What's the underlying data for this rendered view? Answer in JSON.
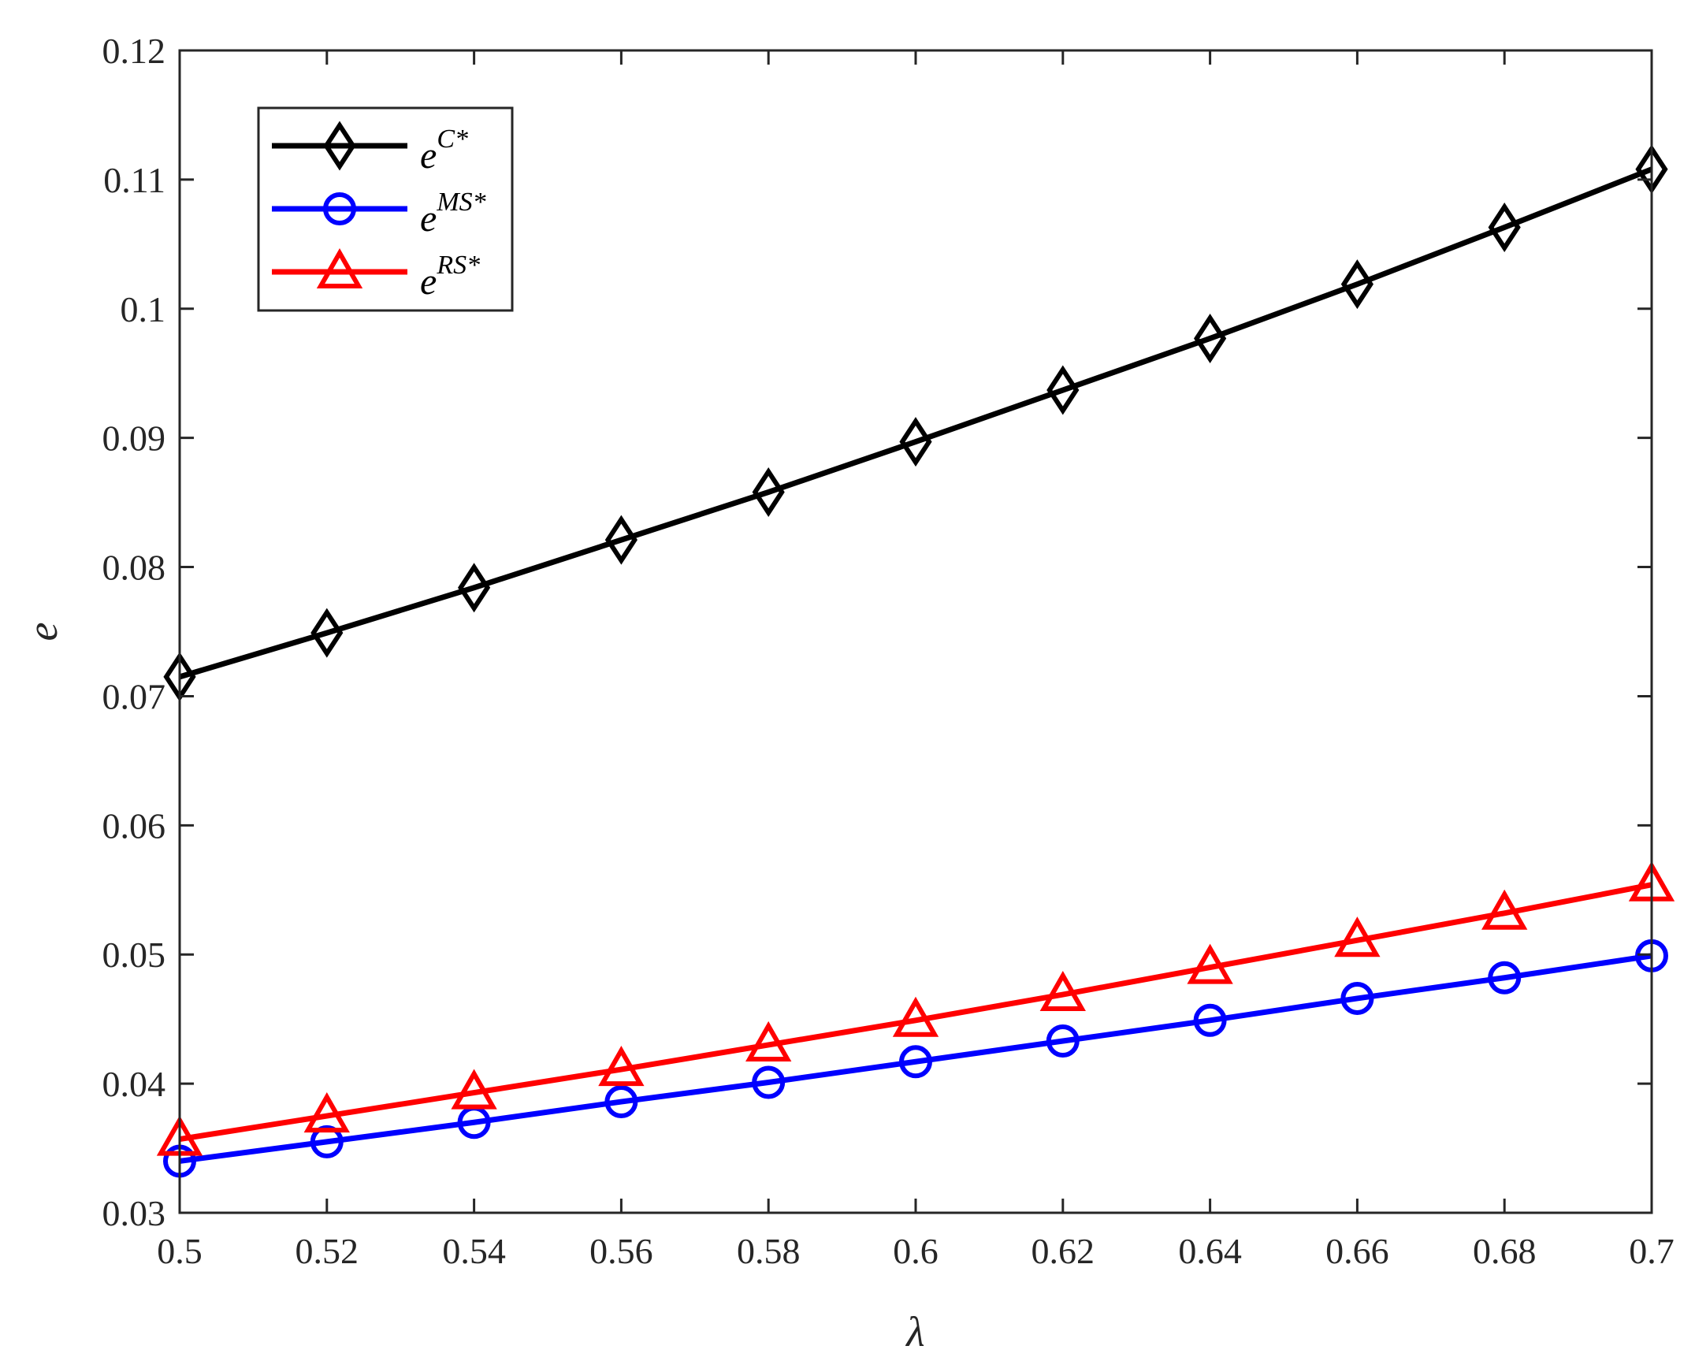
{
  "chart_data": {
    "type": "line",
    "title": "",
    "xlabel": "λ",
    "ylabel": "e",
    "xlim": [
      0.5,
      0.7
    ],
    "ylim": [
      0.03,
      0.12
    ],
    "xticks": [
      "0.5",
      "0.52",
      "0.54",
      "0.56",
      "0.58",
      "0.6",
      "0.62",
      "0.64",
      "0.66",
      "0.68",
      "0.7"
    ],
    "yticks": [
      "0.03",
      "0.04",
      "0.05",
      "0.06",
      "0.07",
      "0.08",
      "0.09",
      "0.1",
      "0.11",
      "0.12"
    ],
    "x": [
      0.5,
      0.52,
      0.54,
      0.56,
      0.58,
      0.6,
      0.62,
      0.64,
      0.66,
      0.68,
      0.7
    ],
    "grid": false,
    "legend_position": "top-left",
    "series": [
      {
        "name_base": "e",
        "name_sup": "C*",
        "color": "#000000",
        "marker": "diamond",
        "values": [
          0.0715,
          0.0749,
          0.0784,
          0.0821,
          0.0858,
          0.0897,
          0.0937,
          0.0977,
          0.1019,
          0.1063,
          0.1108
        ]
      },
      {
        "name_base": "e",
        "name_sup": "MS*",
        "color": "#0000ff",
        "marker": "circle",
        "values": [
          0.034,
          0.0355,
          0.037,
          0.0386,
          0.0401,
          0.0417,
          0.0433,
          0.0449,
          0.0466,
          0.0482,
          0.0499
        ]
      },
      {
        "name_base": "e",
        "name_sup": "RS*",
        "color": "#ff0000",
        "marker": "triangle",
        "values": [
          0.0357,
          0.0375,
          0.0393,
          0.0411,
          0.043,
          0.0449,
          0.0469,
          0.049,
          0.0511,
          0.0532,
          0.0554
        ]
      }
    ]
  }
}
